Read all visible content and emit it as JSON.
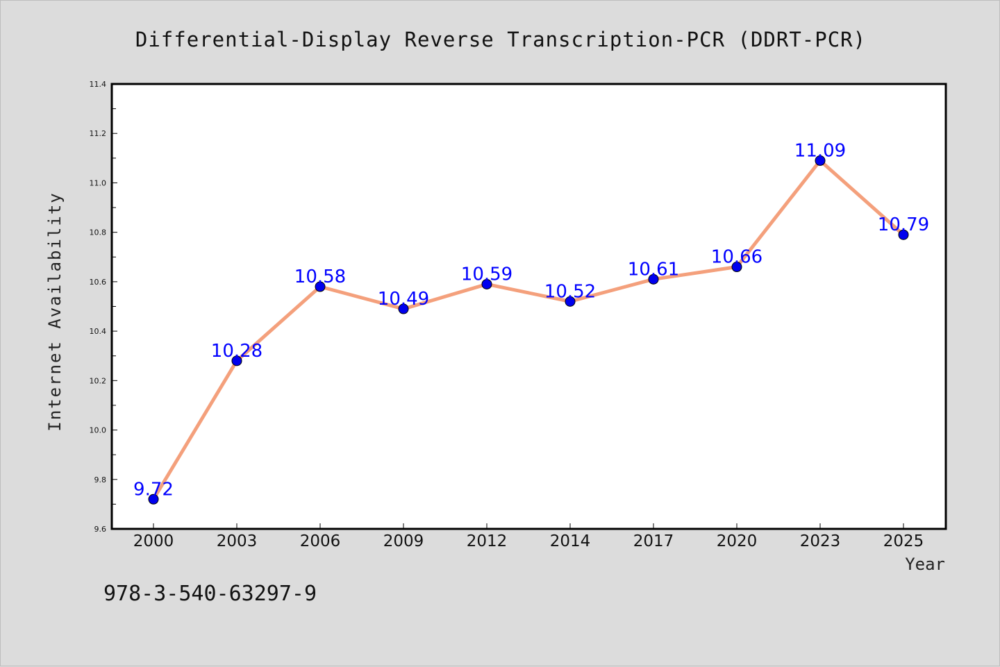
{
  "chart_data": {
    "type": "line",
    "title": "Differential-Display Reverse Transcription-PCR (DDRT-PCR)",
    "xlabel": "Year",
    "ylabel": "Internet Availability",
    "categories": [
      "2000",
      "2003",
      "2006",
      "2009",
      "2012",
      "2014",
      "2017",
      "2020",
      "2023",
      "2025"
    ],
    "values": [
      9.72,
      10.28,
      10.58,
      10.49,
      10.59,
      10.52,
      10.61,
      10.66,
      11.09,
      10.79
    ],
    "data_labels": [
      "9.72",
      "10.28",
      "10.58",
      "10.49",
      "10.59",
      "10.52",
      "10.61",
      "10.66",
      "11.09",
      "10.79"
    ],
    "ylim": [
      9.6,
      11.4
    ],
    "yticks": [
      "9.6",
      "9.8",
      "10.0",
      "10.2",
      "10.4",
      "10.6",
      "10.8",
      "11.0",
      "11.2",
      "11.4"
    ],
    "grid": false,
    "legend": "none",
    "annotation": "978-3-540-63297-9",
    "colors": {
      "line": "#f4a07c",
      "marker": "#0000ee",
      "label": "#0000ff",
      "background": "#dcdcdc",
      "plot_background": "#ffffff"
    }
  }
}
